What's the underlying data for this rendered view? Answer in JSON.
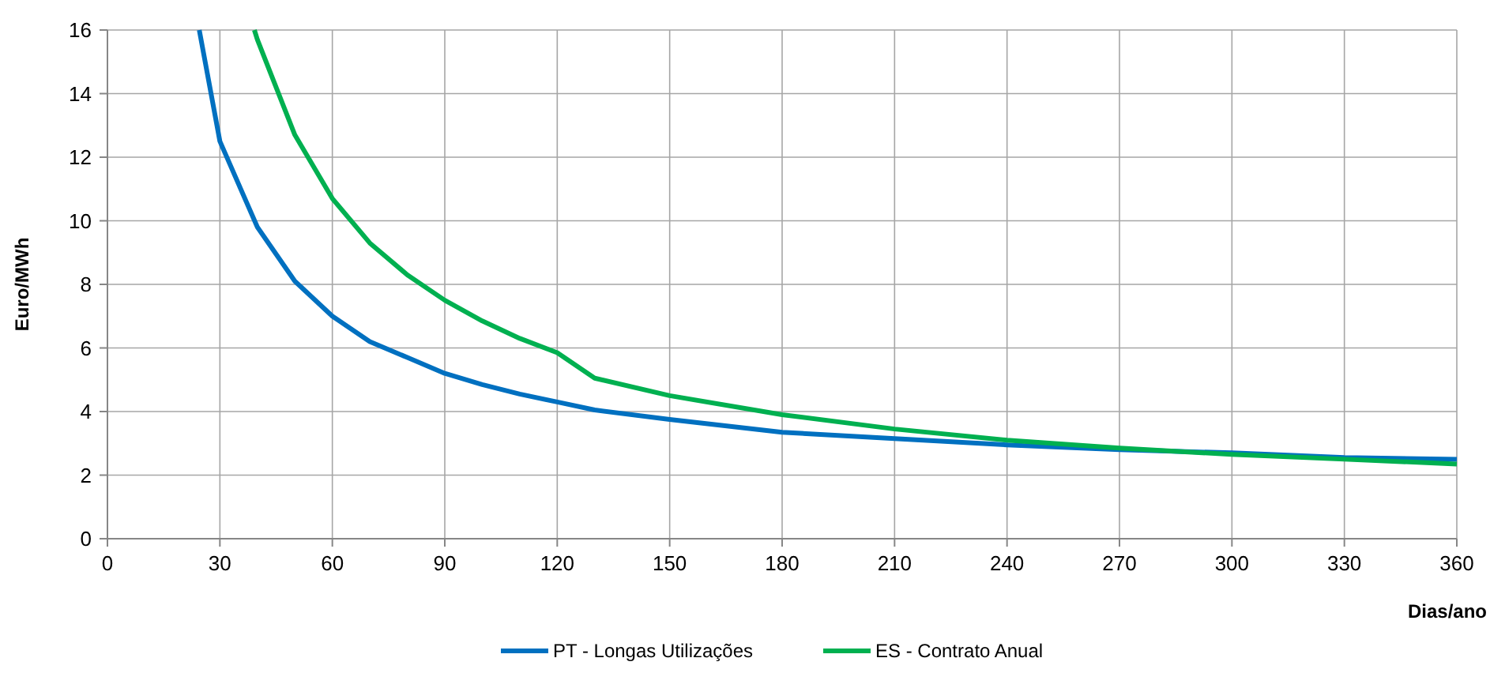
{
  "chart_data": {
    "type": "line",
    "xlabel": "Dias/ano",
    "ylabel": "Euro/MWh",
    "xlim": [
      0,
      360
    ],
    "xticks": [
      0,
      30,
      60,
      90,
      120,
      150,
      180,
      210,
      240,
      270,
      300,
      330,
      360
    ],
    "ylim": [
      0,
      16
    ],
    "yticks": [
      0,
      2,
      4,
      6,
      8,
      10,
      12,
      14,
      16
    ],
    "grid": true,
    "legend": "bottom",
    "marker": "none",
    "line_style": "solid",
    "series": [
      {
        "name": "PT - Longas Utilizações",
        "color": "#0070c0",
        "x": [
          24.5,
          30,
          40,
          50,
          60,
          70,
          80,
          90,
          100,
          110,
          120,
          130,
          150,
          180,
          210,
          240,
          270,
          300,
          330,
          360
        ],
        "values": [
          16,
          12.5,
          9.8,
          8.1,
          7.0,
          6.2,
          5.7,
          5.2,
          4.85,
          4.55,
          4.3,
          4.05,
          3.75,
          3.35,
          3.15,
          2.95,
          2.8,
          2.7,
          2.55,
          2.5
        ]
      },
      {
        "name": "ES - Contrato Anual",
        "color": "#00b050",
        "x": [
          39.2,
          40,
          50,
          60,
          70,
          80,
          90,
          100,
          110,
          120,
          130,
          150,
          180,
          210,
          240,
          270,
          300,
          330,
          360
        ],
        "values": [
          16,
          15.7,
          12.7,
          10.7,
          9.3,
          8.3,
          7.5,
          6.85,
          6.3,
          5.85,
          5.05,
          4.5,
          3.9,
          3.45,
          3.1,
          2.85,
          2.65,
          2.5,
          2.35
        ]
      }
    ]
  }
}
